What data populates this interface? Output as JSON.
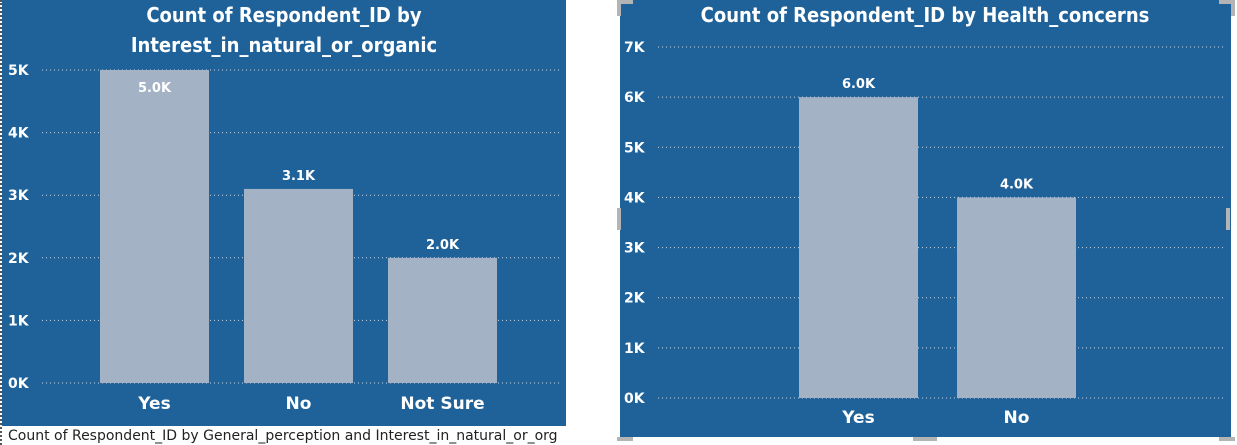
{
  "chart_data": [
    {
      "type": "bar",
      "title": "Count of Respondent_ID by Interest_in_natural_or_organic",
      "title_lines": [
        "Count of Respondent_ID by",
        "Interest_in_natural_or_organic"
      ],
      "categories": [
        "Yes",
        "No",
        "Not Sure"
      ],
      "values": [
        5000,
        3100,
        2000
      ],
      "data_labels": [
        "5.0K",
        "3.1K",
        "2.0K"
      ],
      "ylim": [
        0,
        5000
      ],
      "yticks": [
        0,
        1000,
        2000,
        3000,
        4000,
        5000
      ],
      "ytick_labels": [
        "0K",
        "1K",
        "2K",
        "3K",
        "4K",
        "5K"
      ],
      "xlabel": "",
      "ylabel": "",
      "grid": true
    },
    {
      "type": "bar",
      "title": "Count of Respondent_ID by Health_concerns",
      "title_lines": [
        "Count of Respondent_ID by Health_concerns"
      ],
      "categories": [
        "Yes",
        "No"
      ],
      "values": [
        6000,
        4000
      ],
      "data_labels": [
        "6.0K",
        "4.0K"
      ],
      "ylim": [
        0,
        7000
      ],
      "yticks": [
        0,
        1000,
        2000,
        3000,
        4000,
        5000,
        6000,
        7000
      ],
      "ytick_labels": [
        "0K",
        "1K",
        "2K",
        "3K",
        "4K",
        "5K",
        "6K",
        "7K"
      ],
      "xlabel": "",
      "ylabel": "",
      "grid": true
    }
  ],
  "caption": "Count of Respondent_ID by General_perception and Interest_in_natural_or_org",
  "colors": {
    "panel_background": "#1f6199",
    "bar": "#a3b2c5",
    "text": "#ffffff",
    "gridline": "#c9d5e3"
  }
}
